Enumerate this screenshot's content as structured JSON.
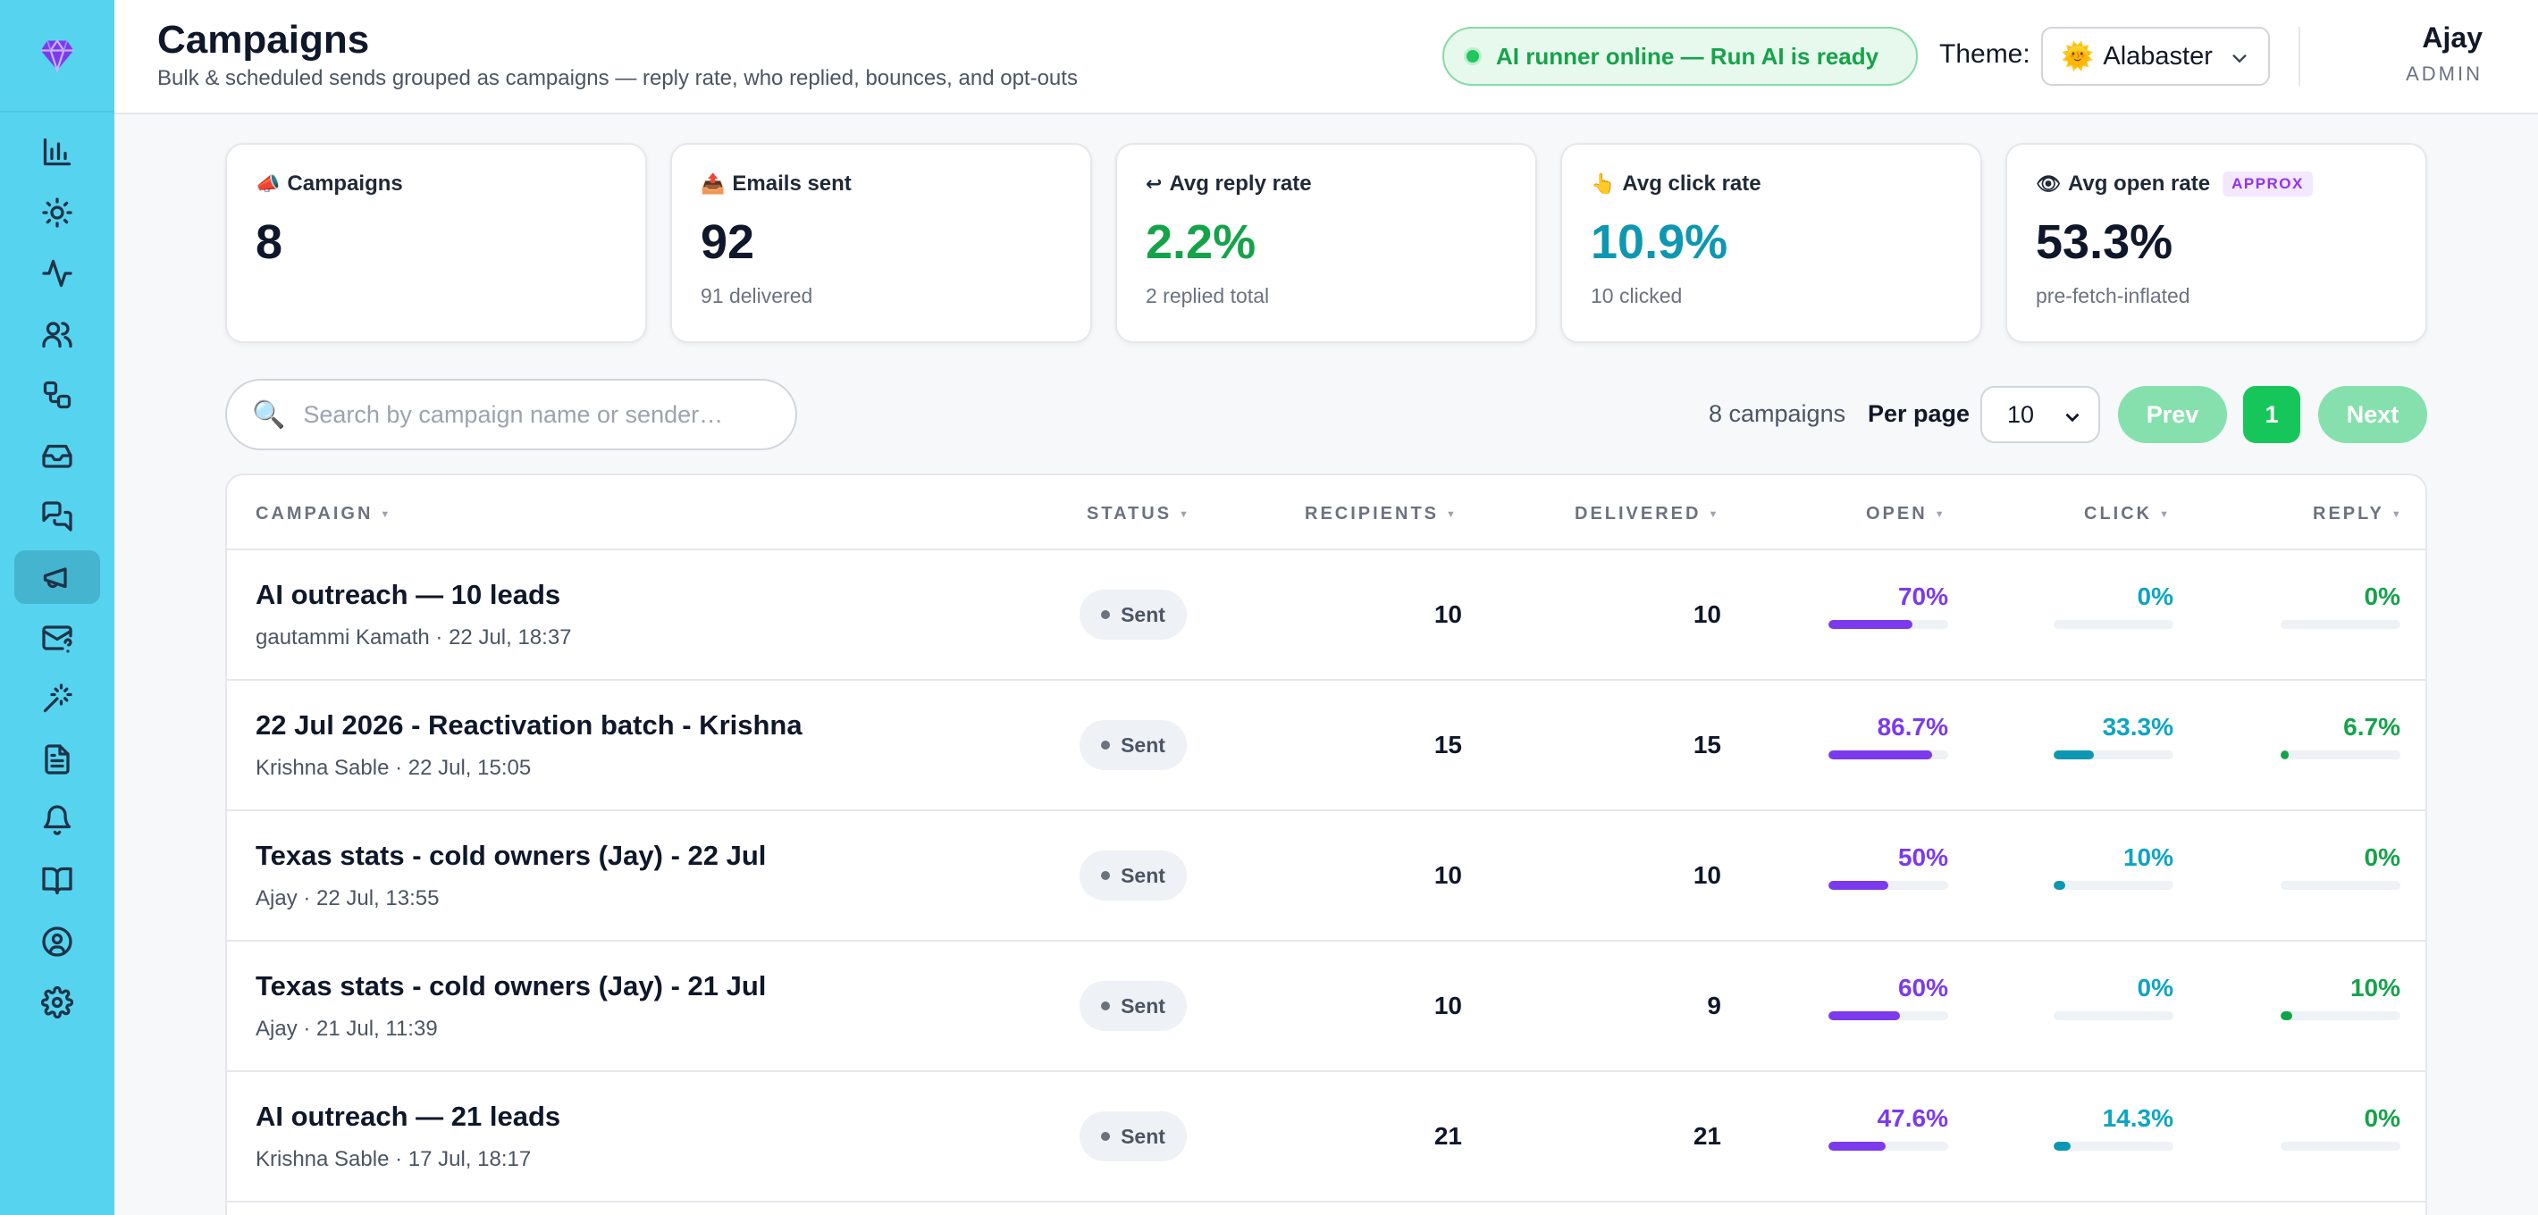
{
  "colors": {
    "sidebar": "#56d3ef",
    "accent_green": "#16c65b",
    "open": "#7c3aed",
    "click": "#0ea5c2",
    "reply": "#15a34a"
  },
  "sidebar": {
    "logo_icon": "gem-icon",
    "items": [
      {
        "icon": "bar-chart-icon",
        "active": false
      },
      {
        "icon": "sun-icon",
        "active": false
      },
      {
        "icon": "activity-icon",
        "active": false
      },
      {
        "icon": "users-icon",
        "active": false
      },
      {
        "icon": "workflow-icon",
        "active": false
      },
      {
        "icon": "inbox-icon",
        "active": false
      },
      {
        "icon": "messages-icon",
        "active": false
      },
      {
        "icon": "megaphone-icon",
        "active": true
      },
      {
        "icon": "mail-question-icon",
        "active": false
      },
      {
        "icon": "magic-wand-icon",
        "active": false
      },
      {
        "icon": "document-icon",
        "active": false
      },
      {
        "icon": "bell-icon",
        "active": false
      },
      {
        "icon": "book-icon",
        "active": false
      },
      {
        "icon": "user-circle-icon",
        "active": false
      },
      {
        "icon": "settings-icon",
        "active": false
      }
    ]
  },
  "header": {
    "title": "Campaigns",
    "subtitle": "Bulk & scheduled sends grouped as campaigns — reply rate, who replied, bounces, and opt-outs",
    "ai_status": "AI runner online — Run AI is ready",
    "theme_label": "Theme:",
    "theme_value": "Alabaster",
    "user_name": "Ajay",
    "user_role": "ADMIN"
  },
  "stats": [
    {
      "icon": "📣",
      "label": "Campaigns",
      "value": "8",
      "sub": "",
      "color": "#0f172a",
      "badge": ""
    },
    {
      "icon": "📤",
      "label": "Emails sent",
      "value": "92",
      "sub": "91 delivered",
      "color": "#0f172a",
      "badge": ""
    },
    {
      "icon": "↩",
      "label": "Avg reply rate",
      "value": "2.2%",
      "sub": "2 replied total",
      "color": "#15a34a",
      "badge": ""
    },
    {
      "icon": "👆",
      "label": "Avg click rate",
      "value": "10.9%",
      "sub": "10 clicked",
      "color": "#0e97b2",
      "badge": ""
    },
    {
      "icon": "👁",
      "label": "Avg open rate",
      "value": "53.3%",
      "sub": "pre-fetch-inflated",
      "color": "#0f172a",
      "badge": "APPROX"
    }
  ],
  "toolbar": {
    "search_placeholder": "Search by campaign name or sender…",
    "count_text": "8 campaigns",
    "per_page_label": "Per page",
    "per_page_value": "10",
    "prev_label": "Prev",
    "page": "1",
    "next_label": "Next"
  },
  "table": {
    "headers": {
      "campaign": "CAMPAIGN",
      "status": "STATUS",
      "recipients": "RECIPIENTS",
      "delivered": "DELIVERED",
      "open": "OPEN",
      "click": "CLICK",
      "reply": "REPLY"
    },
    "rows": [
      {
        "name": "AI outreach — 10 leads",
        "meta": "gautammi Kamath · 22 Jul, 18:37",
        "status": "Sent",
        "recipients": "10",
        "delivered": "10",
        "open": "70%",
        "open_frac": 0.7,
        "click": "0%",
        "click_frac": 0,
        "reply": "0%",
        "reply_frac": 0
      },
      {
        "name": "22 Jul 2026 - Reactivation batch - Krishna",
        "meta": "Krishna Sable · 22 Jul, 15:05",
        "status": "Sent",
        "recipients": "15",
        "delivered": "15",
        "open": "86.7%",
        "open_frac": 0.867,
        "click": "33.3%",
        "click_frac": 0.333,
        "reply": "6.7%",
        "reply_frac": 0.067
      },
      {
        "name": "Texas stats - cold owners (Jay) - 22 Jul",
        "meta": "Ajay · 22 Jul, 13:55",
        "status": "Sent",
        "recipients": "10",
        "delivered": "10",
        "open": "50%",
        "open_frac": 0.5,
        "click": "10%",
        "click_frac": 0.1,
        "reply": "0%",
        "reply_frac": 0
      },
      {
        "name": "Texas stats - cold owners (Jay) - 21 Jul",
        "meta": "Ajay · 21 Jul, 11:39",
        "status": "Sent",
        "recipients": "10",
        "delivered": "9",
        "open": "60%",
        "open_frac": 0.6,
        "click": "0%",
        "click_frac": 0,
        "reply": "10%",
        "reply_frac": 0.1
      },
      {
        "name": "AI outreach — 21 leads",
        "meta": "Krishna Sable · 17 Jul, 18:17",
        "status": "Sent",
        "recipients": "21",
        "delivered": "21",
        "open": "47.6%",
        "open_frac": 0.476,
        "click": "14.3%",
        "click_frac": 0.143,
        "reply": "0%",
        "reply_frac": 0
      }
    ]
  }
}
